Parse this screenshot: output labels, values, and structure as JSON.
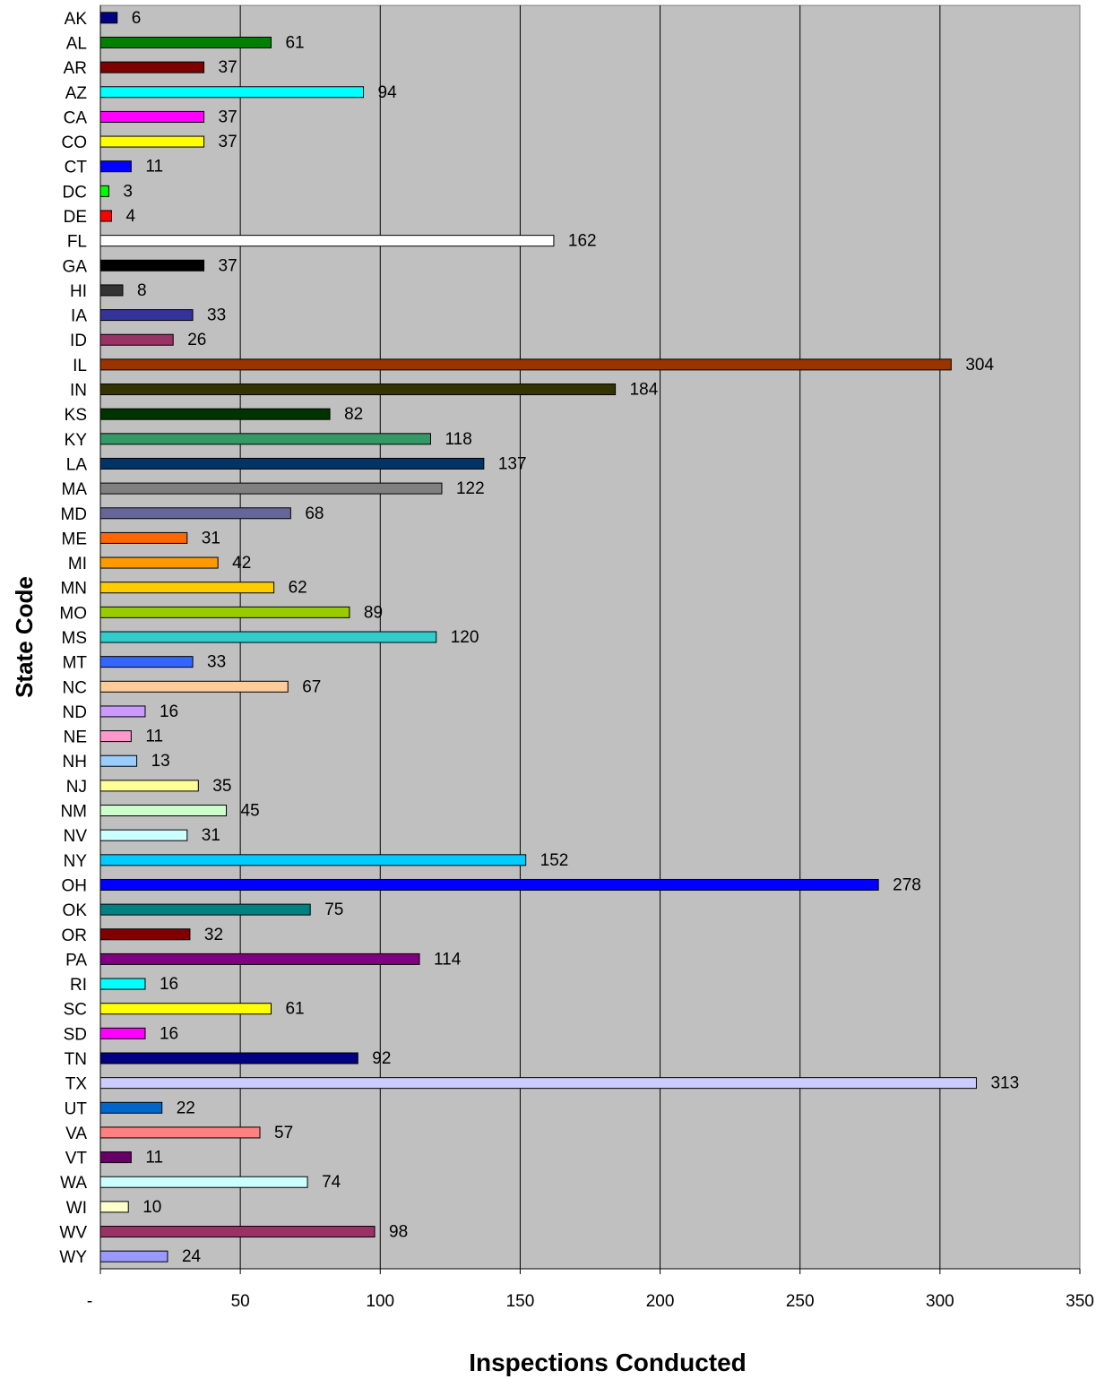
{
  "chart_data": {
    "type": "bar",
    "orientation": "horizontal",
    "xlabel": "Inspections Conducted",
    "ylabel": "State Code",
    "xlim": [
      0,
      350
    ],
    "x_ticks": [
      "-",
      "50",
      "100",
      "150",
      "200",
      "250",
      "300",
      "350"
    ],
    "grid": true,
    "plot_background": "#c0c0c0",
    "categories": [
      "AK",
      "AL",
      "AR",
      "AZ",
      "CA",
      "CO",
      "CT",
      "DC",
      "DE",
      "FL",
      "GA",
      "HI",
      "IA",
      "ID",
      "IL",
      "IN",
      "KS",
      "KY",
      "LA",
      "MA",
      "MD",
      "ME",
      "MI",
      "MN",
      "MO",
      "MS",
      "MT",
      "NC",
      "ND",
      "NE",
      "NH",
      "NJ",
      "NM",
      "NV",
      "NY",
      "OH",
      "OK",
      "OR",
      "PA",
      "RI",
      "SC",
      "SD",
      "TN",
      "TX",
      "UT",
      "VA",
      "VT",
      "WA",
      "WI",
      "WV",
      "WY"
    ],
    "values": [
      6,
      61,
      37,
      94,
      37,
      37,
      11,
      3,
      4,
      162,
      37,
      8,
      33,
      26,
      304,
      184,
      82,
      118,
      137,
      122,
      68,
      31,
      42,
      62,
      89,
      120,
      33,
      67,
      16,
      11,
      13,
      35,
      45,
      31,
      152,
      278,
      75,
      32,
      114,
      16,
      61,
      16,
      92,
      313,
      22,
      57,
      11,
      74,
      10,
      98,
      24
    ],
    "colors": [
      "#000080",
      "#008000",
      "#800000",
      "#00ffff",
      "#ff00ff",
      "#ffff00",
      "#0000ff",
      "#00ff00",
      "#ff0000",
      "#ffffff",
      "#000000",
      "#333333",
      "#333399",
      "#993366",
      "#993300",
      "#333300",
      "#003300",
      "#339966",
      "#003366",
      "#808080",
      "#666699",
      "#ff6600",
      "#ff9900",
      "#ffcc00",
      "#99cc00",
      "#33cccc",
      "#3366ff",
      "#ffcc99",
      "#cc99ff",
      "#ff99cc",
      "#99ccff",
      "#ffff99",
      "#ccffcc",
      "#ccffff",
      "#00ccff",
      "#0000ff",
      "#008080",
      "#800000",
      "#800080",
      "#00ffff",
      "#ffff00",
      "#ff00ff",
      "#000080",
      "#ccccff",
      "#0066cc",
      "#ff8080",
      "#660066",
      "#ccffff",
      "#ffffcc",
      "#993366",
      "#9999ff"
    ]
  }
}
